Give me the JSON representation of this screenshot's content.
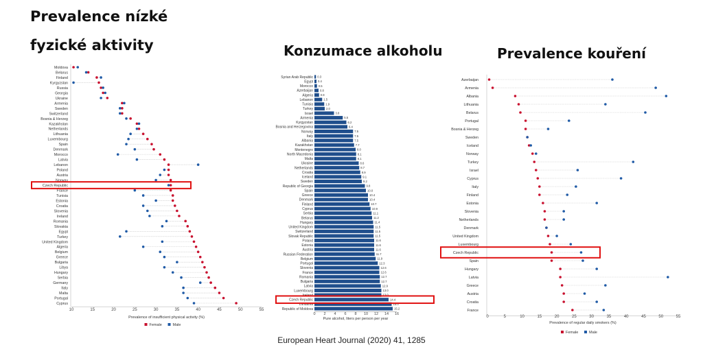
{
  "titles": {
    "activity_line1": "Prevalence nízké",
    "activity_line2": "fyzické aktivity",
    "alcohol": "Konzumace alkoholu",
    "smoking": "Prevalence kouření"
  },
  "citation": "European Heart Journal (2020) 41, 1285",
  "colors": {
    "female": "#c8102e",
    "male": "#1f5aa6",
    "bar": "#1f4e8c",
    "highlight": "#e01010",
    "connector": "#c9c9c9"
  },
  "chart_data": [
    {
      "type": "scatter",
      "id": "activity",
      "xlabel": "Prevalence of insufficient physical activity (%)",
      "xlim": [
        10,
        55
      ],
      "xticks": [
        10,
        15,
        20,
        25,
        30,
        35,
        40,
        45,
        50,
        55
      ],
      "legend": [
        "Female",
        "Male"
      ],
      "highlight": "Czech Republic",
      "categories": [
        "Moldova",
        "Belarus",
        "Finland",
        "Kyrgyzstan",
        "Russia",
        "Georgia",
        "Ukraine",
        "Armenia",
        "Sweden",
        "Switzerland",
        "Bosnia & Herzeg",
        "Kazakhstan",
        "Netherlands",
        "Lithuania",
        "Luxembourg",
        "Spain",
        "Denmark",
        "Morocco",
        "Latvia",
        "Lebanon",
        "Poland",
        "Austria",
        "Norway",
        "Czech Republic",
        "France",
        "Tunisia",
        "Estonia",
        "Croatia",
        "Slovenia",
        "Ireland",
        "Romania",
        "Slovakia",
        "Egypt",
        "Turkey",
        "United Kingdom",
        "Algeria",
        "Belgium",
        "Greece",
        "Bulgaria",
        "Libya",
        "Hungary",
        "Serbia",
        "Germany",
        "Italy",
        "Malta",
        "Portugal",
        "Cyprus"
      ],
      "series": [
        {
          "name": "Female",
          "values": [
            10.5,
            14,
            16,
            16.5,
            17,
            17.5,
            18.5,
            22,
            22,
            22,
            24,
            25.5,
            26,
            27,
            28,
            29,
            29.5,
            31,
            32,
            33,
            33,
            33,
            33.5,
            33.5,
            33.5,
            34,
            34,
            34.5,
            35,
            35.5,
            37,
            37.5,
            38,
            38.5,
            39,
            39.5,
            40,
            40.5,
            41,
            41.5,
            42,
            42.5,
            43,
            44,
            45,
            46,
            49
          ]
        },
        {
          "name": "Male",
          "values": [
            11.5,
            13.5,
            17,
            10.5,
            17.5,
            18,
            17,
            22.5,
            21.5,
            21.5,
            23,
            26,
            25.5,
            24,
            23.5,
            23,
            25,
            21,
            25.5,
            40,
            32,
            31,
            30,
            33,
            25,
            27,
            30,
            27,
            28,
            28.5,
            32.5,
            31.5,
            23,
            21.5,
            31.5,
            27,
            31,
            32,
            35,
            32,
            34,
            36,
            40.5,
            36.5,
            36.5,
            37.5,
            39
          ]
        }
      ]
    },
    {
      "type": "bar",
      "id": "alcohol",
      "xlabel": "Pure alcohol, liters per person per year",
      "xlim": [
        0,
        16
      ],
      "xticks": [
        0,
        2,
        4,
        6,
        8,
        10,
        12,
        14,
        16
      ],
      "highlight": "Czech Republic",
      "categories": [
        "Syrian Arab Republic",
        "Egypt",
        "Morocco",
        "Azerbaijan",
        "Algeria",
        "Lebanon",
        "Tunisia",
        "Turkey",
        "Israel",
        "Armenia",
        "Kyrgyzstan",
        "Bosnia and Herzegovina",
        "Norway",
        "Italy",
        "Albania",
        "Kazakhstan",
        "Montenegro",
        "North Macedonia",
        "Malta",
        "Ukraine",
        "Netherlands",
        "Croatia",
        "Iceland",
        "Sweden",
        "Republic of Georgia",
        "Spain",
        "Greece",
        "Denmark",
        "Finland",
        "Cyprus",
        "Serbia",
        "Belarus",
        "Hungary",
        "United Kingdom",
        "Switzerland",
        "Slovak Republic",
        "Poland",
        "Estonia",
        "Austria",
        "Russian Federation",
        "Belgium",
        "Portugal",
        "Slovenia",
        "France",
        "Romania",
        "Bulgaria",
        "Latvia",
        "Luxembourg",
        "Ireland",
        "Czech Republic",
        "Lithuania",
        "Republic of Moldova"
      ],
      "values": [
        0.3,
        0.4,
        0.5,
        0.8,
        0.9,
        1.5,
        1.9,
        2.0,
        3.8,
        5.5,
        6.2,
        6.4,
        7.5,
        7.5,
        7.5,
        7.7,
        8.0,
        8.1,
        8.1,
        8.6,
        8.7,
        8.9,
        9.1,
        9.2,
        9.8,
        10.0,
        10.4,
        10.4,
        10.7,
        10.9,
        11.1,
        11.2,
        11.4,
        11.5,
        11.5,
        11.5,
        11.6,
        11.6,
        11.6,
        11.7,
        11.9,
        12.3,
        12.6,
        12.6,
        12.7,
        12.7,
        12.9,
        13.0,
        13.0,
        14.4,
        15.0,
        15.2
      ]
    },
    {
      "type": "scatter",
      "id": "smoking",
      "xlabel": "Prevalence of regular daily smokers (%)",
      "xlim": [
        0,
        55
      ],
      "xticks": [
        0,
        5,
        10,
        15,
        20,
        25,
        30,
        35,
        40,
        45,
        50,
        55
      ],
      "legend": [
        "Female",
        "Male"
      ],
      "highlight": "Czech Republic",
      "categories": [
        "Azerbaijan",
        "Armenia",
        "Albania",
        "Lithuania",
        "Belarus",
        "Portugal",
        "Bosnia & Herzeg",
        "Sweden",
        "Iceland",
        "Norway",
        "Turkey",
        "Israel",
        "Cyprus",
        "Italy",
        "Finland",
        "Estonia",
        "Slovenia",
        "Netherlands",
        "Denmark",
        "United Kingdom",
        "Luxembourg",
        "Czech Republic",
        "Spain",
        "Hungary",
        "Latvia",
        "Greece",
        "Austria",
        "Croatia",
        "France"
      ],
      "series": [
        {
          "name": "Female",
          "values": [
            0.5,
            1.5,
            8,
            9,
            9.5,
            11,
            11,
            11.5,
            12,
            13,
            13.5,
            14,
            14.5,
            15,
            15,
            16,
            16.5,
            16.5,
            17,
            17.5,
            18,
            18.5,
            18.5,
            21,
            21,
            21.5,
            22,
            22,
            24.5
          ]
        },
        {
          "name": "Male",
          "values": [
            36,
            48.5,
            51.5,
            34,
            45.5,
            23.5,
            17.5,
            11.5,
            12.5,
            14,
            42,
            26,
            38.5,
            25.5,
            23,
            31.5,
            22,
            22,
            17,
            20,
            24,
            27,
            27.5,
            31.5,
            52,
            34,
            28,
            31.5,
            33.5
          ]
        }
      ]
    }
  ]
}
